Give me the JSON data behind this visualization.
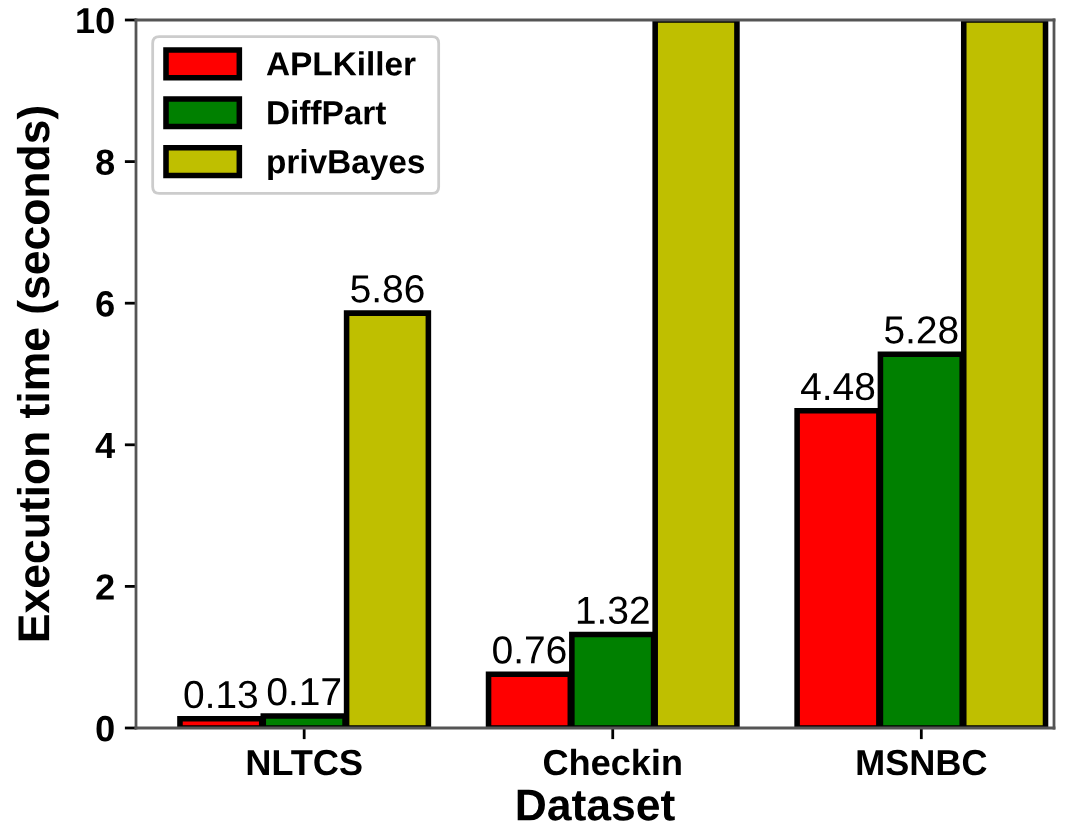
{
  "chart_data": {
    "type": "bar",
    "xlabel": "Dataset",
    "ylabel": "Execution time (seconds)",
    "categories": [
      "NLTCS",
      "Checkin",
      "MSNBC"
    ],
    "series": [
      {
        "name": "APLKiller",
        "color": "#ff0000",
        "values": [
          0.13,
          0.76,
          4.48
        ],
        "value_labels": [
          "0.13",
          "0.76",
          "4.48"
        ]
      },
      {
        "name": "DiffPart",
        "color": "#008000",
        "values": [
          0.17,
          1.32,
          5.28
        ],
        "value_labels": [
          "0.17",
          "1.32",
          "5.28"
        ]
      },
      {
        "name": "privBayes",
        "color": "#bfbf00",
        "values": [
          5.86,
          10,
          10
        ],
        "value_labels": [
          "5.86",
          null,
          null
        ]
      }
    ],
    "ylim": [
      0,
      10
    ],
    "yticks": [
      0,
      2,
      4,
      6,
      8,
      10
    ],
    "grid": false,
    "legend": "top left"
  }
}
